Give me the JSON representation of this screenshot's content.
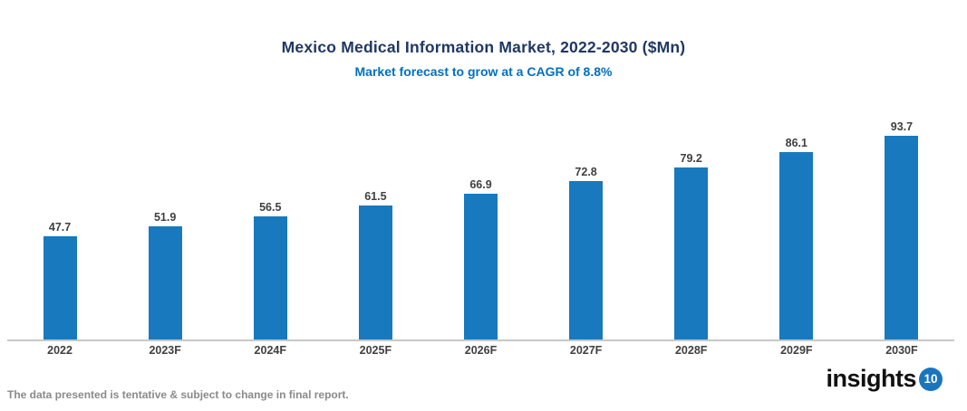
{
  "header": {
    "title": "Mexico Medical Information Market, 2022-2030 ($Mn)",
    "subtitle": "Market forecast to grow at a CAGR of 8.8%"
  },
  "chart_data": {
    "type": "bar",
    "title": "Mexico Medical Information Market, 2022-2030 ($Mn)",
    "subtitle": "Market forecast to grow at a CAGR of 8.8%",
    "categories": [
      "2022",
      "2023F",
      "2024F",
      "2025F",
      "2026F",
      "2027F",
      "2028F",
      "2029F",
      "2030F"
    ],
    "values": [
      47.7,
      51.9,
      56.5,
      61.5,
      66.9,
      72.8,
      79.2,
      86.1,
      93.7
    ],
    "xlabel": "",
    "ylabel": "",
    "ylim": [
      0,
      100
    ],
    "grid": false,
    "legend": "none",
    "data_labels": "above-bars",
    "bar_color": "#1879BE"
  },
  "footer": {
    "disclaimer": "The data presented is tentative & subject to change in final report.",
    "logo_text": "insights",
    "logo_badge": "10"
  },
  "colors": {
    "title": "#1F3864",
    "subtitle": "#0070C0",
    "bar": "#1879BE",
    "axis_line": "#C8C8C8",
    "value_label": "#404040",
    "category_label": "#404040",
    "disclaimer_text": "#8A8A8A",
    "logo_badge_bg": "#1B75BC"
  }
}
